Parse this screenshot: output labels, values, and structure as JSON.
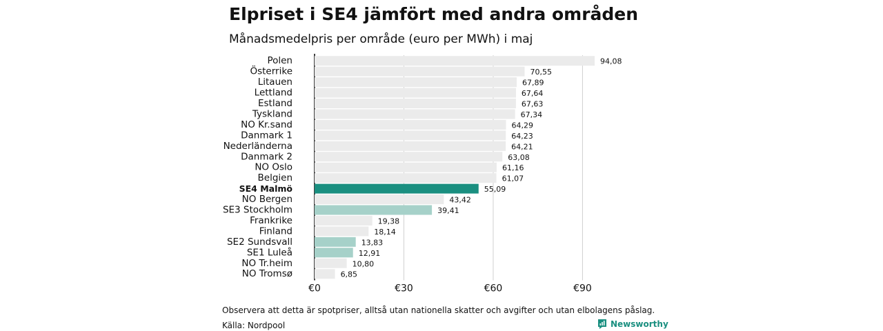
{
  "chart_data": {
    "type": "bar",
    "orientation": "horizontal",
    "title": "Elpriset i SE4 jämfört med andra områden",
    "subtitle": "Månadsmedelpris per område (euro per MWh) i maj",
    "categories": [
      "Polen",
      "Österrike",
      "Litauen",
      "Lettland",
      "Estland",
      "Tyskland",
      "NO Kr.sand",
      "Danmark 1",
      "Nederländerna",
      "Danmark 2",
      "NO Oslo",
      "Belgien",
      "SE4 Malmö",
      "NO Bergen",
      "SE3 Stockholm",
      "Frankrike",
      "Finland",
      "SE2 Sundsvall",
      "SE1 Luleå",
      "NO Tr.heim",
      "NO Tromsø"
    ],
    "values": [
      94.08,
      70.55,
      67.89,
      67.64,
      67.63,
      67.34,
      64.29,
      64.23,
      64.21,
      63.08,
      61.16,
      61.07,
      55.09,
      43.42,
      39.41,
      19.38,
      18.14,
      13.83,
      12.91,
      10.8,
      6.85
    ],
    "value_labels": [
      "94,08",
      "70,55",
      "67,89",
      "67,64",
      "67,63",
      "67,34",
      "64,29",
      "64,23",
      "64,21",
      "63,08",
      "61,16",
      "61,07",
      "55,09",
      "43,42",
      "39,41",
      "19,38",
      "18,14",
      "13,83",
      "12,91",
      "10,80",
      "6,85"
    ],
    "highlight": [
      "other",
      "other",
      "other",
      "other",
      "other",
      "other",
      "other",
      "other",
      "other",
      "other",
      "other",
      "other",
      "focus",
      "other",
      "swedish",
      "other",
      "other",
      "swedish",
      "swedish",
      "other",
      "other"
    ],
    "xlim": [
      0,
      100
    ],
    "xticks": [
      0,
      30,
      60,
      90
    ],
    "xtick_labels": [
      "€0",
      "€30",
      "€60",
      "€90"
    ],
    "grid": true,
    "colors": {
      "other": "#ebebeb",
      "focus": "#1a8f80",
      "swedish": "#a6d1c9",
      "grid": "#d0d0d0",
      "axis": "#111111"
    }
  },
  "footnote": "Observera att detta är spotpriser, alltså utan nationella skatter och avgifter och utan elbolagens påslag.",
  "source": "Källa: Nordpool",
  "brand": {
    "name": "Newsworthy",
    "icon": "newsworthy-logo-icon",
    "color": "#1a8f80"
  }
}
